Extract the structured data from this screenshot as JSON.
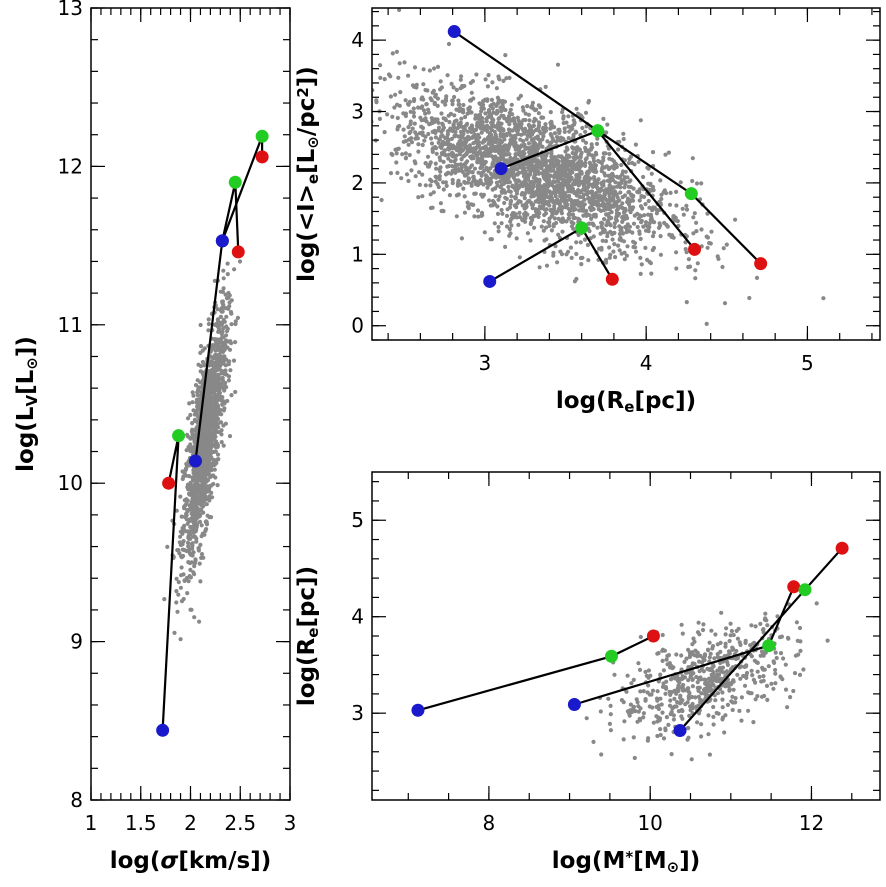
{
  "colors": {
    "cloud": "#888888",
    "blue": "#1a1acc",
    "green": "#22cc22",
    "red": "#dd1111",
    "line": "#000000"
  },
  "chart_data": [
    {
      "id": "lv-sigma",
      "type": "scatter",
      "xlabel": "log(σ[km/s])",
      "ylabel": "log(L_V[L_⊙])",
      "xlim": [
        1,
        3
      ],
      "ylim": [
        8,
        13
      ],
      "xticks": [
        {
          "v": 1,
          "t": "1"
        },
        {
          "v": 1.5,
          "t": "1.5"
        },
        {
          "v": 2,
          "t": "2"
        },
        {
          "v": 2.5,
          "t": "2.5"
        },
        {
          "v": 3,
          "t": "3"
        }
      ],
      "yticks": [
        {
          "v": 8,
          "t": "8"
        },
        {
          "v": 9,
          "t": "9"
        },
        {
          "v": 10,
          "t": "10"
        },
        {
          "v": 11,
          "t": "11"
        },
        {
          "v": 12,
          "t": "12"
        },
        {
          "v": 13,
          "t": "13"
        }
      ],
      "cloud": {
        "cx": 2.15,
        "cy": 10.3,
        "sx": 0.11,
        "sy": 0.38,
        "rho": 0.75,
        "n": 1500
      },
      "tracks": [
        [
          {
            "x": 1.72,
            "y": 8.44,
            "c": "blue"
          },
          {
            "x": 1.88,
            "y": 10.3,
            "c": "green"
          },
          {
            "x": 1.78,
            "y": 10.0,
            "c": "red"
          }
        ],
        [
          {
            "x": 2.05,
            "y": 10.14,
            "c": "blue"
          },
          {
            "x": 2.32,
            "y": 11.53,
            "c": "blue"
          },
          {
            "x": 2.45,
            "y": 11.9,
            "c": "green"
          },
          {
            "x": 2.48,
            "y": 11.46,
            "c": "red"
          }
        ],
        [
          {
            "x": 2.32,
            "y": 11.53,
            "c": "blue"
          },
          {
            "x": 2.72,
            "y": 12.19,
            "c": "green"
          },
          {
            "x": 2.72,
            "y": 12.06,
            "c": "red"
          }
        ]
      ]
    },
    {
      "id": "ie-re",
      "type": "scatter",
      "xlabel": "log(R_e[pc])",
      "ylabel": "log(<I>_e[L_⊙/pc²])",
      "xlim": [
        2.3,
        5.45
      ],
      "ylim": [
        -0.2,
        4.45
      ],
      "xticks": [
        {
          "v": 3,
          "t": "3"
        },
        {
          "v": 4,
          "t": "4"
        },
        {
          "v": 5,
          "t": "5"
        }
      ],
      "yticks": [
        {
          "v": 0,
          "t": "0"
        },
        {
          "v": 1,
          "t": "1"
        },
        {
          "v": 2,
          "t": "2"
        },
        {
          "v": 3,
          "t": "3"
        },
        {
          "v": 4,
          "t": "4"
        }
      ],
      "cloud": {
        "cx": 3.3,
        "cy": 2.2,
        "sx": 0.42,
        "sy": 0.55,
        "rho": -0.6,
        "n": 2600
      },
      "tracks": [
        [
          {
            "x": 2.81,
            "y": 4.12,
            "c": "blue"
          },
          {
            "x": 3.7,
            "y": 2.73,
            "c": "green"
          },
          {
            "x": 4.28,
            "y": 1.85,
            "c": "green"
          },
          {
            "x": 4.71,
            "y": 0.87,
            "c": "red"
          }
        ],
        [
          {
            "x": 3.1,
            "y": 2.2,
            "c": "blue"
          },
          {
            "x": 3.7,
            "y": 2.73,
            "c": "green"
          },
          {
            "x": 4.3,
            "y": 1.07,
            "c": "red"
          }
        ],
        [
          {
            "x": 3.03,
            "y": 0.62,
            "c": "blue"
          },
          {
            "x": 3.6,
            "y": 1.37,
            "c": "green"
          },
          {
            "x": 3.79,
            "y": 0.65,
            "c": "red"
          }
        ]
      ]
    },
    {
      "id": "re-mstar",
      "type": "scatter",
      "xlabel": "log(M*[M_⊙])",
      "ylabel": "log(R_e[pc])",
      "xlim": [
        6.55,
        12.85
      ],
      "ylim": [
        2.1,
        5.5
      ],
      "xticks": [
        {
          "v": 8,
          "t": "8"
        },
        {
          "v": 10,
          "t": "10"
        },
        {
          "v": 12,
          "t": "12"
        }
      ],
      "yticks": [
        {
          "v": 3,
          "t": "3"
        },
        {
          "v": 4,
          "t": "4"
        },
        {
          "v": 5,
          "t": "5"
        }
      ],
      "cloud": {
        "cx": 10.7,
        "cy": 3.35,
        "sx": 0.55,
        "sy": 0.28,
        "rho": 0.55,
        "n": 600
      },
      "tracks": [
        [
          {
            "x": 7.12,
            "y": 3.03,
            "c": "blue"
          },
          {
            "x": 9.52,
            "y": 3.59,
            "c": "green"
          },
          {
            "x": 10.04,
            "y": 3.8,
            "c": "red"
          }
        ],
        [
          {
            "x": 9.06,
            "y": 3.09,
            "c": "blue"
          },
          {
            "x": 11.47,
            "y": 3.7,
            "c": "green"
          },
          {
            "x": 11.78,
            "y": 4.31,
            "c": "red"
          }
        ],
        [
          {
            "x": 10.37,
            "y": 2.82,
            "c": "blue"
          },
          {
            "x": 11.92,
            "y": 4.28,
            "c": "green"
          },
          {
            "x": 12.38,
            "y": 4.71,
            "c": "red"
          }
        ]
      ]
    }
  ]
}
